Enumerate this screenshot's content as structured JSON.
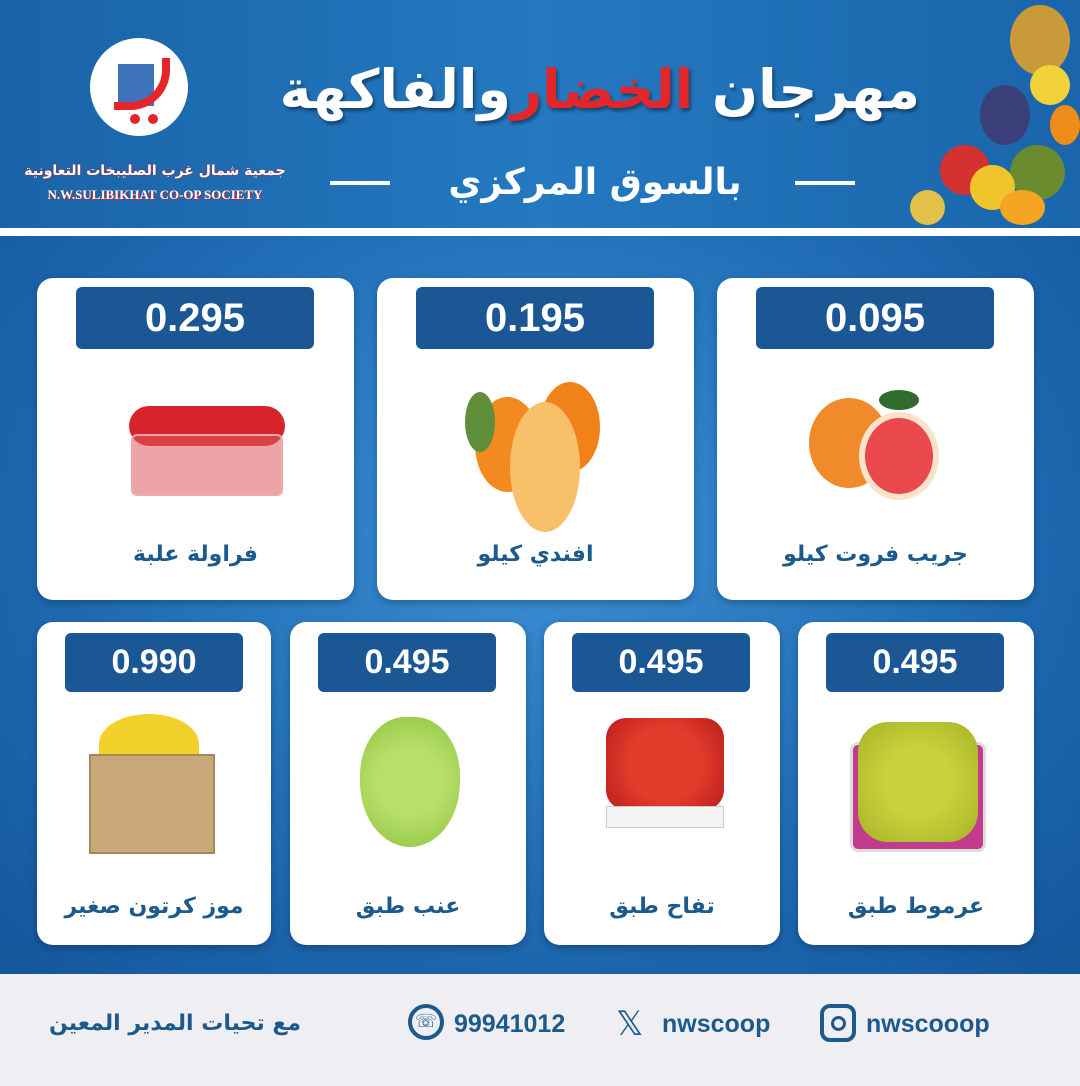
{
  "header": {
    "title_part1": "مهرجان",
    "title_highlight": "الخضار",
    "title_part2": "والفاكهة",
    "subtitle": "بالسوق المركزي",
    "org_name_ar": "جمعية شمال غرب الصليبخات التعاونية",
    "org_name_en": "N.W.SULIBIKHAT CO-OP SOCIETY"
  },
  "products": [
    {
      "name": "جريب فروت كيلو",
      "price": "0.095",
      "icon": "grapefruit"
    },
    {
      "name": "افندي كيلو",
      "price": "0.195",
      "icon": "tangerine"
    },
    {
      "name": "فراولة علبة",
      "price": "0.295",
      "icon": "strawberry-box"
    },
    {
      "name": "عرموط طبق",
      "price": "0.495",
      "icon": "pear-tray"
    },
    {
      "name": "تفاح طبق",
      "price": "0.495",
      "icon": "apple-tray"
    },
    {
      "name": "عنب طبق",
      "price": "0.495",
      "icon": "grapes"
    },
    {
      "name": "موز كرتون صغير",
      "price": "0.990",
      "icon": "banana-box"
    }
  ],
  "footer": {
    "greeting": "مع تحيات المدير المعين",
    "whatsapp": "99941012",
    "x_handle": "nwscoop",
    "instagram_handle": "nwscooop"
  },
  "colors": {
    "brand_blue": "#1b5695",
    "accent_red": "#e4262b",
    "text_blue": "#1d5a8c"
  }
}
